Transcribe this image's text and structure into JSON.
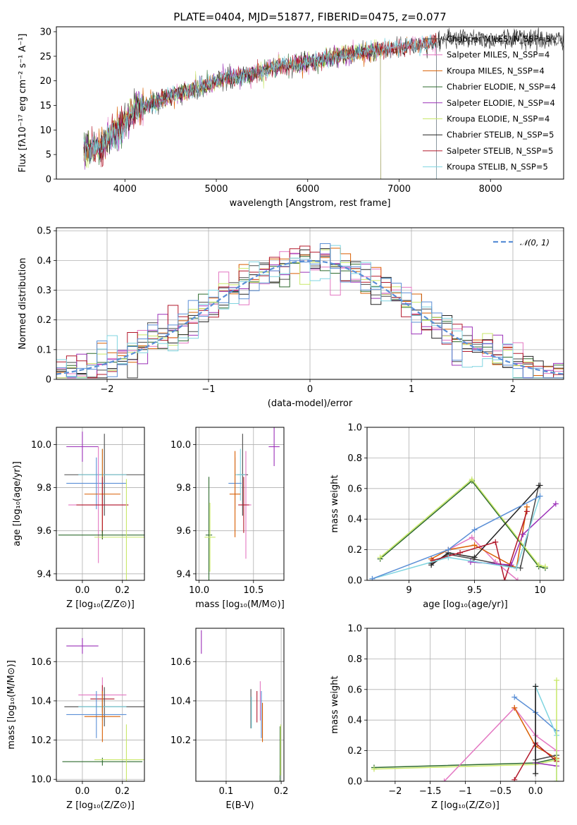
{
  "chart_data": [
    {
      "id": "spectrum",
      "type": "line",
      "title": "PLATE=0404, MJD=51877, FIBERID=0475, z=0.077",
      "xlabel": "wavelength [Angstrom, rest frame]",
      "ylabel": "Flux [fλ10⁻¹⁷ erg cm⁻² s⁻¹ A⁻¹]",
      "xlim": [
        3250,
        8800
      ],
      "ylim": [
        0,
        31
      ],
      "xticks": [
        4000,
        5000,
        6000,
        7000,
        8000
      ],
      "yticks": [
        0,
        5,
        10,
        15,
        20,
        25,
        30
      ],
      "grid": false,
      "legend_position": "upper-right",
      "continuum": [
        [
          3550,
          6.5
        ],
        [
          3700,
          6
        ],
        [
          3850,
          9
        ],
        [
          3950,
          10.5
        ],
        [
          4100,
          14
        ],
        [
          4300,
          15.5
        ],
        [
          4500,
          17
        ],
        [
          4700,
          18
        ],
        [
          4900,
          19
        ],
        [
          5100,
          20.5
        ],
        [
          5300,
          21
        ],
        [
          5500,
          22
        ],
        [
          5700,
          23
        ],
        [
          5900,
          23.5
        ],
        [
          6100,
          24
        ],
        [
          6300,
          25
        ],
        [
          6500,
          25.5
        ],
        [
          6700,
          26
        ],
        [
          6900,
          26.5
        ],
        [
          7100,
          27
        ],
        [
          7300,
          27.5
        ],
        [
          7400,
          28
        ]
      ],
      "segments_x": [
        3550,
        7410
      ],
      "series": [
        {
          "name": "Chabrier MILES, N_SSP=3",
          "color": "#4a4a4a",
          "x_end": 8800
        },
        {
          "name": "Salpeter MILES, N_SSP=4",
          "color": "#e377c2",
          "x_end": 7410
        },
        {
          "name": "Kroupa MILES, N_SSP=4",
          "color": "#d95f02",
          "x_end": 7410
        },
        {
          "name": "Chabrier ELODIE, N_SSP=4",
          "color": "#2e6b2e",
          "x_end": 6800
        },
        {
          "name": "Salpeter ELODIE, N_SSP=4",
          "color": "#9b30b8",
          "x_end": 6800
        },
        {
          "name": "Kroupa ELODIE, N_SSP=4",
          "color": "#c9e86a",
          "x_end": 6800
        },
        {
          "name": "Chabrier STELIB, N_SSP=5",
          "color": "#222222",
          "x_end": 8800
        },
        {
          "name": "Salpeter STELIB, N_SSP=5",
          "color": "#b2182b",
          "x_end": 7410
        },
        {
          "name": "Kroupa STELIB, N_SSP=5",
          "color": "#7fd4e0",
          "x_end": 7410
        }
      ]
    },
    {
      "id": "residuals",
      "type": "line",
      "xlabel": "(data-model)/error",
      "ylabel": "Normed distribution",
      "xlim": [
        -2.5,
        2.5
      ],
      "ylim": [
        0,
        0.51
      ],
      "xticks": [
        -2,
        -1,
        0,
        1,
        2
      ],
      "yticks": [
        0.0,
        0.1,
        0.2,
        0.3,
        0.4,
        0.5
      ],
      "grid": true,
      "legend_position": "upper-right",
      "reference_curve": {
        "name": "𝒩(0, 1)",
        "color": "#5b8fd6",
        "style": "dashed"
      },
      "histogram_colors": [
        "#4a4a4a",
        "#e377c2",
        "#d95f02",
        "#2e6b2e",
        "#9b30b8",
        "#c9e86a",
        "#222222",
        "#b2182b",
        "#7fd4e0",
        "#5b8fd6"
      ]
    },
    {
      "id": "age-vs-Z",
      "type": "scatter",
      "xlabel": "Z [log₁₀(Z/Z⊙)]",
      "ylabel": "age  [log₁₀(age/yr)]",
      "xlim": [
        -0.13,
        0.31
      ],
      "ylim": [
        9.37,
        10.08
      ],
      "xticks": [
        0.0,
        0.2
      ],
      "yticks": [
        9.4,
        9.6,
        9.8,
        10.0
      ],
      "grid": true,
      "points": [
        {
          "x": 0.0,
          "y": 9.99,
          "xerr": 0.08,
          "yerr": 0.07,
          "color": "#9b30b8"
        },
        {
          "x": 0.11,
          "y": 9.86,
          "xerr": 0.2,
          "yerr": 0.19,
          "color": "#4a4a4a"
        },
        {
          "x": 0.1,
          "y": 9.86,
          "xerr": 0.12,
          "yerr": 0.12,
          "color": "#7fd4e0"
        },
        {
          "x": 0.07,
          "y": 9.82,
          "xerr": 0.15,
          "yerr": 0.12,
          "color": "#5b8fd6"
        },
        {
          "x": 0.1,
          "y": 9.77,
          "xerr": 0.09,
          "yerr": 0.21,
          "color": "#d95f02"
        },
        {
          "x": 0.08,
          "y": 9.72,
          "xerr": 0.15,
          "yerr": 0.27,
          "color": "#e377c2"
        },
        {
          "x": 0.1,
          "y": 9.72,
          "xerr": 0.13,
          "yerr": 0.13,
          "color": "#b2182b"
        },
        {
          "x": 0.1,
          "y": 9.58,
          "xerr": 0.22,
          "yerr": 0.02,
          "color": "#2e6b2e"
        },
        {
          "x": 0.22,
          "y": 9.57,
          "xerr": 0.16,
          "yerr": 0.27,
          "color": "#c9e86a"
        }
      ]
    },
    {
      "id": "age-vs-mass",
      "type": "scatter",
      "xlabel": "mass [log₁₀(M/M⊙)]",
      "xlim": [
        9.97,
        10.78
      ],
      "ylim": [
        9.37,
        10.08
      ],
      "xticks": [
        10.0,
        10.5
      ],
      "yticks": [
        9.4,
        9.6,
        9.8,
        10.0
      ],
      "grid": true,
      "points": [
        {
          "x": 10.69,
          "y": 9.99,
          "xerr": 0.05,
          "yerr": 0.09,
          "color": "#9b30b8"
        },
        {
          "x": 10.4,
          "y": 9.86,
          "xerr": 0.05,
          "yerr": 0.19,
          "color": "#4a4a4a"
        },
        {
          "x": 10.38,
          "y": 9.86,
          "xerr": 0.05,
          "yerr": 0.12,
          "color": "#7fd4e0"
        },
        {
          "x": 10.33,
          "y": 9.82,
          "xerr": 0.06,
          "yerr": 0.12,
          "color": "#5b8fd6"
        },
        {
          "x": 10.33,
          "y": 9.77,
          "xerr": 0.05,
          "yerr": 0.2,
          "color": "#d95f02"
        },
        {
          "x": 10.43,
          "y": 9.72,
          "xerr": 0.05,
          "yerr": 0.25,
          "color": "#e377c2"
        },
        {
          "x": 10.41,
          "y": 9.72,
          "xerr": 0.05,
          "yerr": 0.13,
          "color": "#b2182b"
        },
        {
          "x": 10.09,
          "y": 9.58,
          "xerr": 0.03,
          "yerr": 0.27,
          "color": "#2e6b2e"
        },
        {
          "x": 10.1,
          "y": 9.57,
          "xerr": 0.05,
          "yerr": 0.16,
          "color": "#c9e86a"
        }
      ]
    },
    {
      "id": "weight-vs-age",
      "type": "line",
      "xlabel": "age  [log₁₀(age/yr)]",
      "ylabel": "mass weight",
      "xlim": [
        8.68,
        10.18
      ],
      "ylim": [
        0,
        1.0
      ],
      "xticks": [
        9.0,
        9.5,
        10.0
      ],
      "yticks": [
        0.0,
        0.2,
        0.4,
        0.6,
        0.8,
        1.0
      ],
      "grid": true,
      "series": [
        {
          "color": "#4a4a4a",
          "x": [
            9.17,
            9.3,
            9.49,
            9.85,
            9.99
          ],
          "y": [
            0.11,
            0.17,
            0.14,
            0.08,
            0.62
          ]
        },
        {
          "color": "#e377c2",
          "x": [
            9.3,
            9.48,
            9.66,
            9.83
          ],
          "y": [
            0.2,
            0.28,
            0.12,
            0.0
          ]
        },
        {
          "color": "#d95f02",
          "x": [
            9.17,
            9.3,
            9.5,
            9.82,
            9.9
          ],
          "y": [
            0.14,
            0.2,
            0.23,
            0.08,
            0.48
          ]
        },
        {
          "color": "#2e6b2e",
          "x": [
            8.78,
            9.48,
            9.99,
            10.04
          ],
          "y": [
            0.14,
            0.65,
            0.09,
            0.08
          ]
        },
        {
          "color": "#9b30b8",
          "x": [
            9.47,
            9.78,
            9.87,
            10.12
          ],
          "y": [
            0.12,
            0.1,
            0.3,
            0.5
          ]
        },
        {
          "color": "#c9e86a",
          "x": [
            8.78,
            9.48,
            9.99,
            10.04
          ],
          "y": [
            0.15,
            0.66,
            0.1,
            0.09
          ]
        },
        {
          "color": "#222222",
          "x": [
            9.17,
            9.3,
            9.5,
            10.0
          ],
          "y": [
            0.1,
            0.18,
            0.15,
            0.62
          ]
        },
        {
          "color": "#b2182b",
          "x": [
            9.18,
            9.39,
            9.66,
            9.73,
            9.9
          ],
          "y": [
            0.13,
            0.18,
            0.25,
            0.0,
            0.45
          ]
        },
        {
          "color": "#7fd4e0",
          "x": [
            8.72,
            9.3,
            9.82,
            10.0
          ],
          "y": [
            0.01,
            0.15,
            0.08,
            0.55
          ]
        },
        {
          "color": "#5b8fd6",
          "x": [
            8.72,
            9.3,
            9.5,
            10.0
          ],
          "y": [
            0.01,
            0.2,
            0.33,
            0.55
          ]
        }
      ]
    },
    {
      "id": "mass-vs-Z",
      "type": "scatter",
      "xlabel": "Z [log₁₀(Z/Z⊙)]",
      "ylabel": "mass [log₁₀(M/M⊙)]",
      "xlim": [
        -0.13,
        0.31
      ],
      "ylim": [
        9.99,
        10.77
      ],
      "xticks": [
        0.0,
        0.2
      ],
      "yticks": [
        10.0,
        10.2,
        10.4,
        10.6
      ],
      "grid": true,
      "points": [
        {
          "x": 0.0,
          "y": 10.68,
          "xerr": 0.08,
          "yerr": 0.04,
          "color": "#9b30b8"
        },
        {
          "x": 0.1,
          "y": 10.43,
          "xerr": 0.12,
          "yerr": 0.09,
          "color": "#e377c2"
        },
        {
          "x": 0.1,
          "y": 10.41,
          "xerr": 0.06,
          "yerr": 0.07,
          "color": "#b2182b"
        },
        {
          "x": 0.11,
          "y": 10.37,
          "xerr": 0.2,
          "yerr": 0.1,
          "color": "#4a4a4a"
        },
        {
          "x": 0.1,
          "y": 10.37,
          "xerr": 0.12,
          "yerr": 0.07,
          "color": "#7fd4e0"
        },
        {
          "x": 0.07,
          "y": 10.33,
          "xerr": 0.15,
          "yerr": 0.12,
          "color": "#5b8fd6"
        },
        {
          "x": 0.1,
          "y": 10.32,
          "xerr": 0.09,
          "yerr": 0.13,
          "color": "#d95f02"
        },
        {
          "x": 0.1,
          "y": 10.09,
          "xerr": 0.2,
          "yerr": 0.02,
          "color": "#2e6b2e"
        },
        {
          "x": 0.22,
          "y": 10.1,
          "xerr": 0.16,
          "yerr": 0.18,
          "color": "#c9e86a"
        }
      ]
    },
    {
      "id": "mass-vs-EBV",
      "type": "scatter",
      "xlabel": "E(B-V)",
      "xlim": [
        0.045,
        0.205
      ],
      "ylim": [
        9.99,
        10.77
      ],
      "xticks": [
        0.1,
        0.2
      ],
      "yticks": [
        10.2,
        10.4,
        10.6
      ],
      "grid": true,
      "points": [
        {
          "x": 0.055,
          "y": 10.7,
          "yerr": 0.06,
          "color": "#9b30b8"
        },
        {
          "x": 0.162,
          "y": 10.4,
          "yerr": 0.1,
          "color": "#e377c2"
        },
        {
          "x": 0.156,
          "y": 10.37,
          "yerr": 0.08,
          "color": "#b2182b"
        },
        {
          "x": 0.145,
          "y": 10.36,
          "yerr": 0.1,
          "color": "#4a4a4a"
        },
        {
          "x": 0.146,
          "y": 10.34,
          "yerr": 0.08,
          "color": "#7fd4e0"
        },
        {
          "x": 0.164,
          "y": 10.33,
          "yerr": 0.12,
          "color": "#5b8fd6"
        },
        {
          "x": 0.166,
          "y": 10.29,
          "yerr": 0.1,
          "color": "#d95f02"
        },
        {
          "x": 0.198,
          "y": 10.12,
          "yerr": 0.15,
          "color": "#2e6b2e"
        },
        {
          "x": 0.199,
          "y": 10.15,
          "yerr": 0.13,
          "color": "#c9e86a"
        }
      ]
    },
    {
      "id": "weight-vs-Z",
      "type": "line",
      "xlabel": "Z [log₁₀(Z/Z⊙)]",
      "ylabel": "mass weight",
      "xlim": [
        -2.4,
        0.4
      ],
      "ylim": [
        0,
        1.0
      ],
      "xticks": [
        -2.0,
        -1.5,
        -1.0,
        -0.5,
        0.0
      ],
      "yticks": [
        0.0,
        0.2,
        0.4,
        0.6,
        0.8,
        1.0
      ],
      "grid": true,
      "series": [
        {
          "color": "#2e6b2e",
          "x": [
            -2.3,
            0.0,
            0.3
          ],
          "y": [
            0.09,
            0.12,
            0.15
          ]
        },
        {
          "color": "#c9e86a",
          "x": [
            -2.3,
            0.0,
            0.3
          ],
          "y": [
            0.08,
            0.11,
            0.14
          ]
        },
        {
          "color": "#e377c2",
          "x": [
            -1.3,
            -0.3,
            0.0,
            0.3
          ],
          "y": [
            0.0,
            0.48,
            0.3,
            0.2
          ]
        },
        {
          "color": "#d95f02",
          "x": [
            -0.3,
            0.0,
            0.3
          ],
          "y": [
            0.48,
            0.23,
            0.15
          ]
        },
        {
          "color": "#5b8fd6",
          "x": [
            -0.3,
            0.0,
            0.3
          ],
          "y": [
            0.55,
            0.45,
            0.33
          ]
        },
        {
          "color": "#b2182b",
          "x": [
            -0.3,
            0.0,
            0.3
          ],
          "y": [
            0.01,
            0.25,
            0.13
          ]
        },
        {
          "color": "#9b30b8",
          "x": [
            0.0,
            0.3
          ],
          "y": [
            0.12,
            0.1
          ]
        },
        {
          "color": "#4a4a4a",
          "x": [
            0.0,
            0.0,
            0.3
          ],
          "y": [
            0.62,
            0.14,
            0.17
          ]
        },
        {
          "color": "#7fd4e0",
          "x": [
            0.0,
            0.3,
            0.3
          ],
          "y": [
            0.62,
            0.3,
            0.0
          ]
        },
        {
          "color": "#222222",
          "x": [
            0.0,
            0.0
          ],
          "y": [
            0.62,
            0.05
          ]
        },
        {
          "color": "#c9e86a",
          "x": [
            0.3,
            0.3
          ],
          "y": [
            0.66,
            0.0
          ]
        }
      ]
    }
  ]
}
